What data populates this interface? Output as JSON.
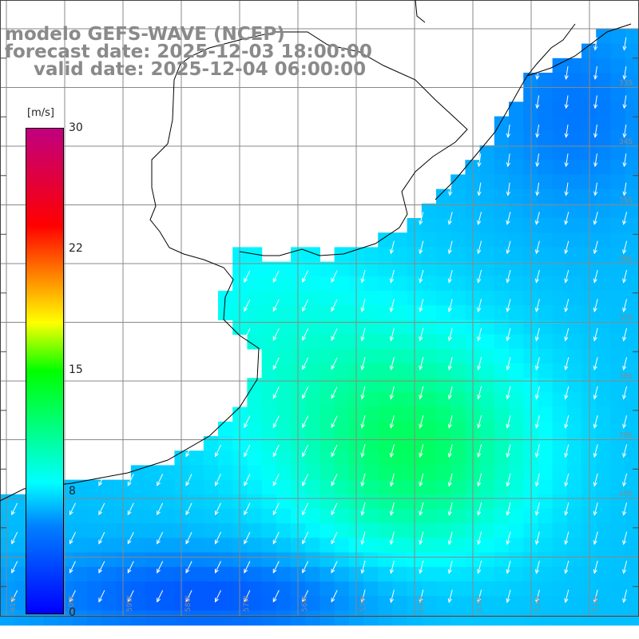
{
  "title": {
    "model": "modelo GEFS-WAVE (NCEP)",
    "forecast": "forecast date: 2025-12-03 18:00:00",
    "valid": "valid date: 2025-12-04 06:00:00"
  },
  "colorbar": {
    "unit": "[m/s]",
    "ticks": [
      {
        "label": "30",
        "value": 30
      },
      {
        "label": "22",
        "value": 22
      },
      {
        "label": "15",
        "value": 15
      },
      {
        "label": "8",
        "value": 8
      },
      {
        "label": "0",
        "value": 0
      }
    ],
    "colors": [
      "#0000ff",
      "#0080ff",
      "#00ffff",
      "#00ff00",
      "#ffff00",
      "#ff8000",
      "#ff0000",
      "#c00080"
    ]
  },
  "grid": {
    "lat_labels": [
      "33S",
      "34S",
      "35S",
      "36S",
      "37S",
      "38S",
      "39S",
      "40S"
    ],
    "lon_labels": [
      "61W",
      "60W",
      "59W",
      "58W",
      "57W",
      "56W",
      "55W",
      "54W",
      "53W",
      "52W",
      "51W"
    ]
  },
  "colors": {
    "land": "#ffffff",
    "coast": "#000000",
    "grid": "#888888",
    "arrows": "#ffffff",
    "labels": "#8a8a8a"
  }
}
